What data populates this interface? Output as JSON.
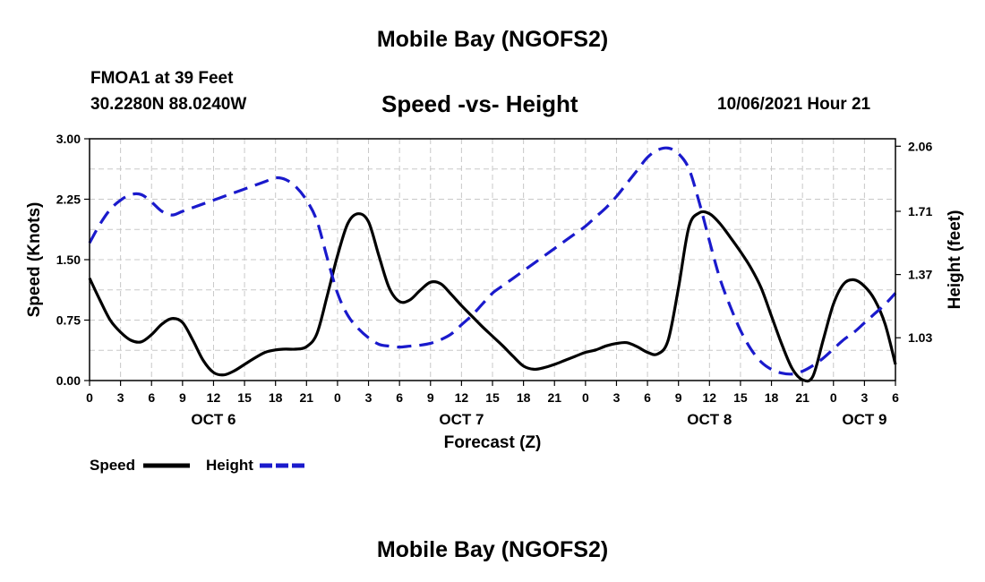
{
  "header": {
    "title": "Mobile Bay (NGOFS2)",
    "station": "FMOA1 at 39 Feet",
    "coordinates": "30.2280N  88.0240W",
    "datetime": "10/06/2021 Hour 21"
  },
  "footer": {
    "title": "Mobile Bay (NGOFS2)"
  },
  "chart_data": {
    "type": "line",
    "title": "Speed -vs- Height",
    "xlabel": "Forecast (Z)",
    "ylabel_left": "Speed (Knots)",
    "ylabel_right": "Height (feet)",
    "x_unit": "hours from Oct 6 00Z",
    "xlim": [
      0,
      78
    ],
    "ylim_left": [
      0,
      3
    ],
    "ylim_right": [
      0.8,
      2.1
    ],
    "x_ticks": [
      {
        "x": 0,
        "label": "0"
      },
      {
        "x": 3,
        "label": "3"
      },
      {
        "x": 6,
        "label": "6"
      },
      {
        "x": 9,
        "label": "9"
      },
      {
        "x": 12,
        "label": "12"
      },
      {
        "x": 15,
        "label": "15"
      },
      {
        "x": 18,
        "label": "18"
      },
      {
        "x": 21,
        "label": "21"
      },
      {
        "x": 24,
        "label": "0"
      },
      {
        "x": 27,
        "label": "3"
      },
      {
        "x": 30,
        "label": "6"
      },
      {
        "x": 33,
        "label": "9"
      },
      {
        "x": 36,
        "label": "12"
      },
      {
        "x": 39,
        "label": "15"
      },
      {
        "x": 42,
        "label": "18"
      },
      {
        "x": 45,
        "label": "21"
      },
      {
        "x": 48,
        "label": "0"
      },
      {
        "x": 51,
        "label": "3"
      },
      {
        "x": 54,
        "label": "6"
      },
      {
        "x": 57,
        "label": "9"
      },
      {
        "x": 60,
        "label": "12"
      },
      {
        "x": 63,
        "label": "15"
      },
      {
        "x": 66,
        "label": "18"
      },
      {
        "x": 69,
        "label": "21"
      },
      {
        "x": 72,
        "label": "0"
      },
      {
        "x": 75,
        "label": "3"
      },
      {
        "x": 78,
        "label": "6"
      }
    ],
    "day_labels": [
      {
        "x": 12,
        "label": "OCT 6"
      },
      {
        "x": 36,
        "label": "OCT 7"
      },
      {
        "x": 60,
        "label": "OCT 8"
      },
      {
        "x": 75,
        "label": "OCT 9"
      }
    ],
    "y_ticks_left": [
      "0.00",
      "0.75",
      "1.50",
      "2.25",
      "3.00"
    ],
    "y_ticks_right": [
      {
        "value": 1.03,
        "label": "1.03"
      },
      {
        "value": 1.37,
        "label": "1.37"
      },
      {
        "value": 1.71,
        "label": "1.71"
      },
      {
        "value": 2.06,
        "label": "2.06"
      }
    ],
    "grid": true,
    "legend": [
      {
        "name": "Speed",
        "color": "#000000",
        "dash": "solid"
      },
      {
        "name": "Height",
        "color": "#1a1acc",
        "dash": "dashed"
      }
    ],
    "series": [
      {
        "name": "Speed",
        "axis": "left",
        "color": "#000000",
        "x": [
          0,
          1,
          2,
          3,
          4,
          5,
          6,
          7,
          8,
          9,
          10,
          11,
          12,
          13,
          14,
          15,
          16,
          17,
          18,
          19,
          20,
          21,
          22,
          23,
          24,
          25,
          26,
          27,
          28,
          29,
          30,
          31,
          32,
          33,
          34,
          35,
          36,
          37,
          38,
          39,
          40,
          41,
          42,
          43,
          44,
          45,
          46,
          47,
          48,
          49,
          50,
          51,
          52,
          53,
          54,
          55,
          56,
          57,
          58,
          59,
          60,
          61,
          62,
          63,
          64,
          65,
          66,
          67,
          68,
          69,
          70,
          71,
          72,
          73,
          74,
          75,
          76,
          77,
          78
        ],
        "values": [
          1.27,
          1.0,
          0.75,
          0.6,
          0.5,
          0.48,
          0.57,
          0.7,
          0.77,
          0.72,
          0.5,
          0.25,
          0.1,
          0.07,
          0.12,
          0.2,
          0.28,
          0.35,
          0.38,
          0.39,
          0.39,
          0.42,
          0.58,
          1.05,
          1.55,
          1.95,
          2.07,
          1.97,
          1.55,
          1.15,
          0.98,
          1.0,
          1.12,
          1.22,
          1.2,
          1.07,
          0.93,
          0.8,
          0.67,
          0.55,
          0.43,
          0.3,
          0.18,
          0.14,
          0.16,
          0.2,
          0.25,
          0.3,
          0.35,
          0.38,
          0.43,
          0.46,
          0.47,
          0.42,
          0.35,
          0.33,
          0.5,
          1.15,
          1.9,
          2.08,
          2.07,
          1.95,
          1.78,
          1.6,
          1.4,
          1.15,
          0.8,
          0.45,
          0.15,
          0.01,
          0.05,
          0.5,
          0.95,
          1.2,
          1.25,
          1.17,
          1.0,
          0.7,
          0.2
        ]
      },
      {
        "name": "Height",
        "axis": "right",
        "color": "#1a1acc",
        "x": [
          0,
          1,
          2,
          3,
          4,
          5,
          6,
          7,
          8,
          9,
          10,
          11,
          12,
          13,
          14,
          15,
          16,
          17,
          18,
          19,
          20,
          21,
          22,
          23,
          24,
          25,
          26,
          27,
          28,
          29,
          30,
          31,
          32,
          33,
          34,
          35,
          36,
          37,
          38,
          39,
          40,
          41,
          42,
          43,
          44,
          45,
          46,
          47,
          48,
          49,
          50,
          51,
          52,
          53,
          54,
          55,
          56,
          57,
          58,
          59,
          60,
          61,
          62,
          63,
          64,
          65,
          66,
          67,
          68,
          69,
          70,
          71,
          72,
          73,
          74,
          75,
          76,
          77,
          78
        ],
        "values": [
          1.54,
          1.64,
          1.72,
          1.77,
          1.8,
          1.8,
          1.76,
          1.71,
          1.69,
          1.71,
          1.73,
          1.75,
          1.77,
          1.79,
          1.81,
          1.83,
          1.85,
          1.87,
          1.89,
          1.88,
          1.84,
          1.77,
          1.66,
          1.46,
          1.27,
          1.15,
          1.08,
          1.03,
          0.995,
          0.985,
          0.98,
          0.985,
          0.99,
          1.0,
          1.02,
          1.05,
          1.1,
          1.15,
          1.21,
          1.27,
          1.31,
          1.35,
          1.39,
          1.43,
          1.47,
          1.51,
          1.55,
          1.59,
          1.63,
          1.68,
          1.73,
          1.79,
          1.86,
          1.93,
          2.0,
          2.04,
          2.05,
          2.02,
          1.94,
          1.76,
          1.55,
          1.35,
          1.2,
          1.07,
          0.97,
          0.9,
          0.86,
          0.84,
          0.835,
          0.85,
          0.88,
          0.92,
          0.97,
          1.02,
          1.06,
          1.11,
          1.16,
          1.21,
          1.27
        ]
      }
    ]
  }
}
